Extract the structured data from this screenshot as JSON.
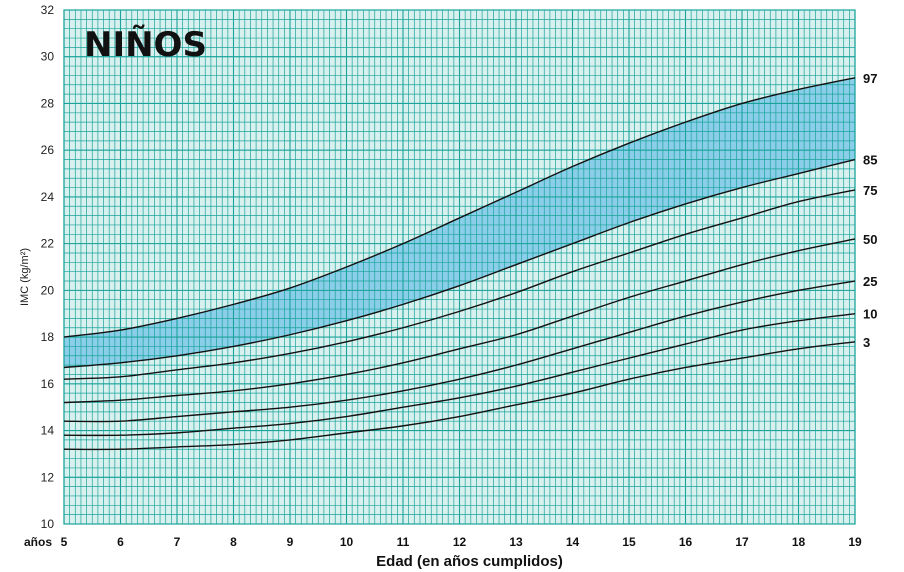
{
  "chart_data": {
    "type": "line",
    "title": "NIÑOS",
    "xlabel": "Edad (en años cumplidos)",
    "ylabel": "IMC (kg/m²)",
    "x_prefix": "años",
    "xlim": [
      5,
      19
    ],
    "ylim": [
      10,
      32
    ],
    "x_ticks": [
      "5",
      "6",
      "7",
      "8",
      "9",
      "10",
      "11",
      "12",
      "13",
      "14",
      "15",
      "16",
      "17",
      "18",
      "19"
    ],
    "y_ticks": [
      "10",
      "12",
      "14",
      "16",
      "18",
      "20",
      "22",
      "24",
      "26",
      "28",
      "30",
      "32"
    ],
    "grid": true,
    "shaded_band": {
      "from": "85",
      "to": "97",
      "color": "#7ec8e8"
    },
    "colors": {
      "grid_bg": "#d8f0ee",
      "grid_line": "#1aa39a",
      "curve": "#111111"
    },
    "x": [
      5,
      6,
      7,
      8,
      9,
      10,
      11,
      12,
      13,
      14,
      15,
      16,
      17,
      18,
      19
    ],
    "series": [
      {
        "name": "97",
        "values": [
          18.0,
          18.3,
          18.8,
          19.4,
          20.1,
          21.0,
          22.0,
          23.1,
          24.2,
          25.3,
          26.3,
          27.2,
          28.0,
          28.6,
          29.1
        ]
      },
      {
        "name": "85",
        "values": [
          16.7,
          16.9,
          17.2,
          17.6,
          18.1,
          18.7,
          19.4,
          20.2,
          21.1,
          22.0,
          22.9,
          23.7,
          24.4,
          25.0,
          25.6
        ]
      },
      {
        "name": "75",
        "values": [
          16.2,
          16.3,
          16.6,
          16.9,
          17.3,
          17.8,
          18.4,
          19.1,
          19.9,
          20.8,
          21.6,
          22.4,
          23.1,
          23.8,
          24.3
        ]
      },
      {
        "name": "50",
        "values": [
          15.2,
          15.3,
          15.5,
          15.7,
          16.0,
          16.4,
          16.9,
          17.5,
          18.1,
          18.9,
          19.7,
          20.4,
          21.1,
          21.7,
          22.2
        ]
      },
      {
        "name": "25",
        "values": [
          14.4,
          14.4,
          14.6,
          14.8,
          15.0,
          15.3,
          15.7,
          16.2,
          16.8,
          17.5,
          18.2,
          18.9,
          19.5,
          20.0,
          20.4
        ]
      },
      {
        "name": "10",
        "values": [
          13.8,
          13.8,
          13.9,
          14.1,
          14.3,
          14.6,
          15.0,
          15.4,
          15.9,
          16.5,
          17.1,
          17.7,
          18.3,
          18.7,
          19.0
        ]
      },
      {
        "name": "3",
        "values": [
          13.2,
          13.2,
          13.3,
          13.4,
          13.6,
          13.9,
          14.2,
          14.6,
          15.1,
          15.6,
          16.2,
          16.7,
          17.1,
          17.5,
          17.8
        ]
      }
    ]
  }
}
